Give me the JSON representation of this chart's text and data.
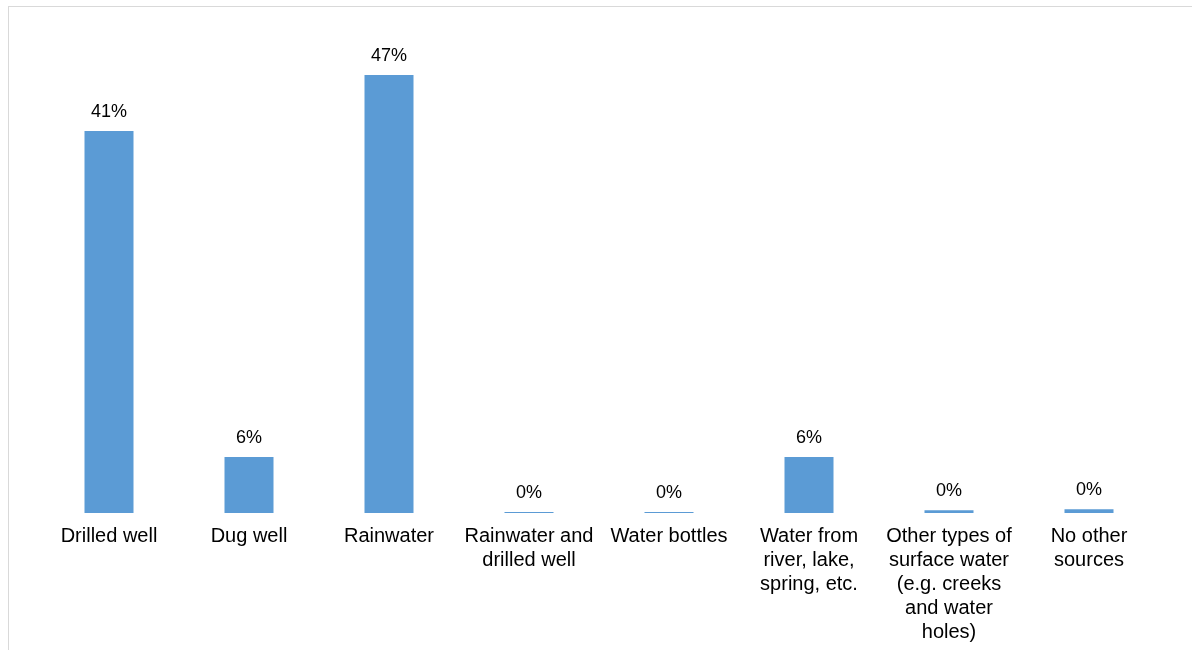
{
  "chart_data": {
    "type": "bar",
    "categories": [
      "Drilled well",
      "Dug well",
      "Rainwater",
      "Rainwater and drilled well",
      "Water bottles",
      "Water from river, lake, spring, etc.",
      "Other types of surface water (e.g. creeks and water holes)",
      "No other sources"
    ],
    "values": [
      41,
      6,
      47,
      0.1,
      0.1,
      6,
      0.3,
      0.4
    ],
    "value_labels": [
      "41%",
      "6%",
      "47%",
      "0%",
      "0%",
      "6%",
      "0%",
      "0%"
    ],
    "color": "#5b9bd5",
    "grid": false,
    "legend": false
  }
}
